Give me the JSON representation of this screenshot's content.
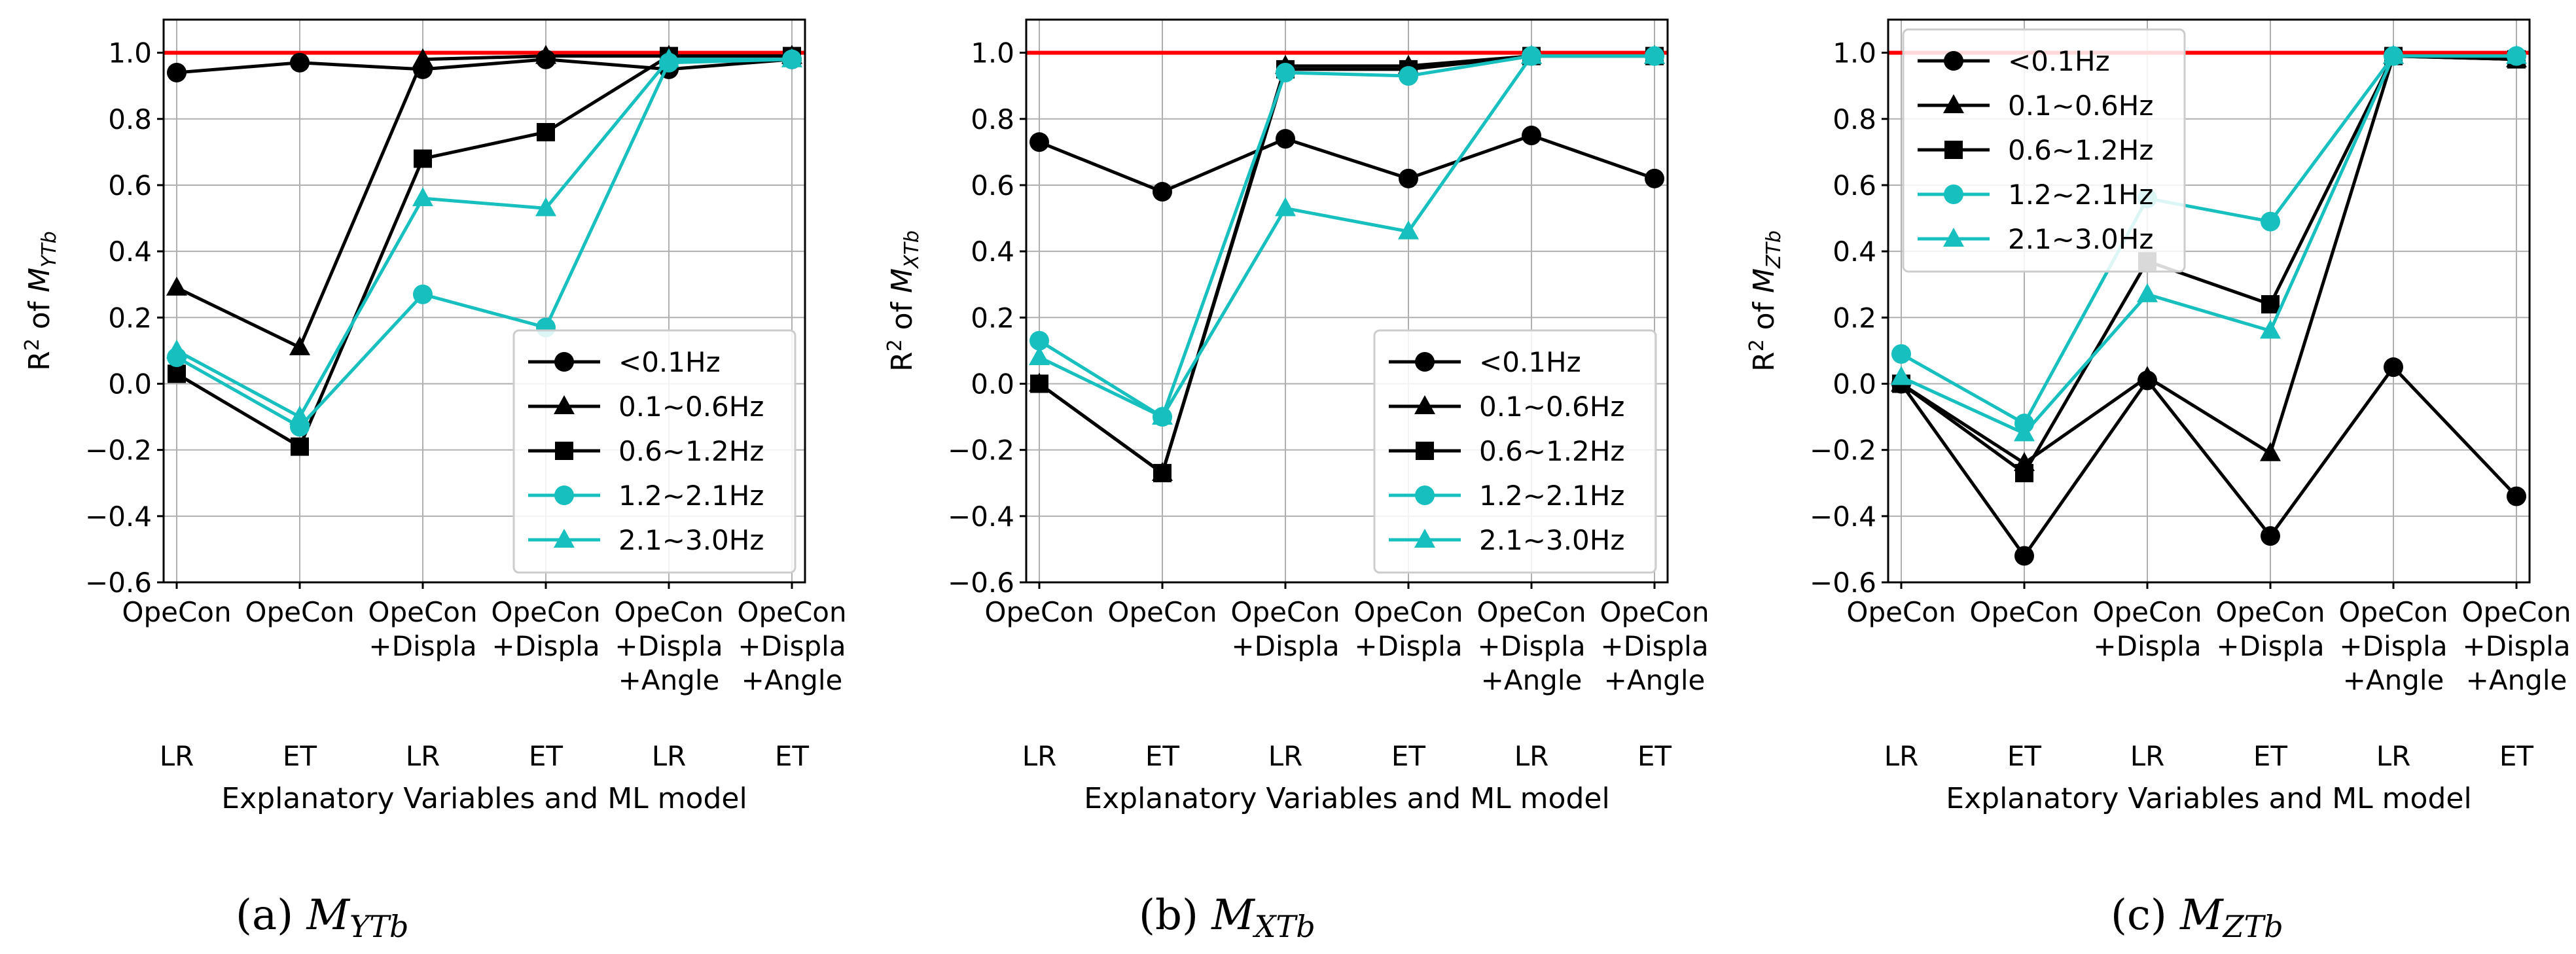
{
  "colors": {
    "black": "#000000",
    "cyan": "#17bfbf",
    "ref": "#ff0000",
    "grid": "#b0b0b0"
  },
  "charts": [
    {
      "panel": "a",
      "caption_letter": "(a)",
      "caption_symbol": "M",
      "caption_sub": "YTb",
      "ylabel_prefix": "R",
      "ylabel_sup": "2",
      "ylabel_of": " of ",
      "ylabel_sym": "M",
      "ylabel_sub": "YTb",
      "xlabel": "Explanatory Variables and ML model",
      "legend_position": "lower-right"
    },
    {
      "panel": "b",
      "caption_letter": "(b)",
      "caption_symbol": "M",
      "caption_sub": "XTb",
      "ylabel_prefix": "R",
      "ylabel_sup": "2",
      "ylabel_of": " of ",
      "ylabel_sym": "M",
      "ylabel_sub": "XTb",
      "xlabel": "Explanatory Variables and ML model",
      "legend_position": "lower-right"
    },
    {
      "panel": "c",
      "caption_letter": "(c)",
      "caption_symbol": "M",
      "caption_sub": "ZTb",
      "ylabel_prefix": "R",
      "ylabel_sup": "2",
      "ylabel_of": " of ",
      "ylabel_sym": "M",
      "ylabel_sub": "ZTb",
      "xlabel": "Explanatory Variables and ML model",
      "legend_position": "upper-left"
    }
  ],
  "chart_data": [
    {
      "type": "line",
      "title": "(a) MYTb",
      "xlabel": "Explanatory Variables and ML model",
      "ylabel": "R2 of MYTb",
      "ylim": [
        -0.6,
        1.1
      ],
      "yticks": [
        "1.0",
        "0.8",
        "0.6",
        "0.4",
        "0.2",
        "0.0",
        "−0.2",
        "−0.4",
        "−0.6"
      ],
      "ytick_values": [
        1.0,
        0.8,
        0.6,
        0.4,
        0.2,
        0.0,
        -0.2,
        -0.4,
        -0.6
      ],
      "categories": [
        {
          "vars": [
            "OpeCon"
          ],
          "model": "LR"
        },
        {
          "vars": [
            "OpeCon"
          ],
          "model": "ET"
        },
        {
          "vars": [
            "OpeCon",
            "+Displa"
          ],
          "model": "LR"
        },
        {
          "vars": [
            "OpeCon",
            "+Displa"
          ],
          "model": "ET"
        },
        {
          "vars": [
            "OpeCon",
            "+Displa",
            "+Angle"
          ],
          "model": "LR"
        },
        {
          "vars": [
            "OpeCon",
            "+Displa",
            "+Angle"
          ],
          "model": "ET"
        }
      ],
      "reference_line": 1.0,
      "grid": true,
      "series": [
        {
          "name": "<0.1Hz",
          "color": "black",
          "marker": "circle",
          "values": [
            0.94,
            0.97,
            0.95,
            0.98,
            0.95,
            0.98
          ]
        },
        {
          "name": "0.1~0.6Hz",
          "color": "black",
          "marker": "triangle",
          "values": [
            0.29,
            0.11,
            0.98,
            0.99,
            0.99,
            0.99
          ]
        },
        {
          "name": "0.6~1.2Hz",
          "color": "black",
          "marker": "square",
          "values": [
            0.03,
            -0.19,
            0.68,
            0.76,
            0.99,
            0.99
          ]
        },
        {
          "name": "1.2~2.1Hz",
          "color": "cyan",
          "marker": "circle",
          "values": [
            0.08,
            -0.13,
            0.27,
            0.17,
            0.97,
            0.98
          ]
        },
        {
          "name": "2.1~3.0Hz",
          "color": "cyan",
          "marker": "triangle",
          "values": [
            0.1,
            -0.1,
            0.56,
            0.53,
            0.98,
            0.98
          ]
        }
      ]
    },
    {
      "type": "line",
      "title": "(b) MXTb",
      "xlabel": "Explanatory Variables and ML model",
      "ylabel": "R2 of MXTb",
      "ylim": [
        -0.6,
        1.1
      ],
      "yticks": [
        "1.0",
        "0.8",
        "0.6",
        "0.4",
        "0.2",
        "0.0",
        "−0.2",
        "−0.4",
        "−0.6"
      ],
      "ytick_values": [
        1.0,
        0.8,
        0.6,
        0.4,
        0.2,
        0.0,
        -0.2,
        -0.4,
        -0.6
      ],
      "categories": [
        {
          "vars": [
            "OpeCon"
          ],
          "model": "LR"
        },
        {
          "vars": [
            "OpeCon"
          ],
          "model": "ET"
        },
        {
          "vars": [
            "OpeCon",
            "+Displa"
          ],
          "model": "LR"
        },
        {
          "vars": [
            "OpeCon",
            "+Displa"
          ],
          "model": "ET"
        },
        {
          "vars": [
            "OpeCon",
            "+Displa",
            "+Angle"
          ],
          "model": "LR"
        },
        {
          "vars": [
            "OpeCon",
            "+Displa",
            "+Angle"
          ],
          "model": "ET"
        }
      ],
      "reference_line": 1.0,
      "grid": true,
      "series": [
        {
          "name": "<0.1Hz",
          "color": "black",
          "marker": "circle",
          "values": [
            0.73,
            0.58,
            0.74,
            0.62,
            0.75,
            0.62
          ]
        },
        {
          "name": "0.1~0.6Hz",
          "color": "black",
          "marker": "triangle",
          "values": [
            0.0,
            -0.27,
            0.96,
            0.96,
            0.99,
            0.99
          ]
        },
        {
          "name": "0.6~1.2Hz",
          "color": "black",
          "marker": "square",
          "values": [
            0.0,
            -0.27,
            0.95,
            0.95,
            0.99,
            0.99
          ]
        },
        {
          "name": "1.2~2.1Hz",
          "color": "cyan",
          "marker": "circle",
          "values": [
            0.13,
            -0.1,
            0.94,
            0.93,
            0.99,
            0.99
          ]
        },
        {
          "name": "2.1~3.0Hz",
          "color": "cyan",
          "marker": "triangle",
          "values": [
            0.08,
            -0.1,
            0.53,
            0.46,
            0.99,
            0.99
          ]
        }
      ]
    },
    {
      "type": "line",
      "title": "(c) MZTb",
      "xlabel": "Explanatory Variables and ML model",
      "ylabel": "R2 of MZTb",
      "ylim": [
        -0.6,
        1.1
      ],
      "yticks": [
        "1.0",
        "0.8",
        "0.6",
        "0.4",
        "0.2",
        "0.0",
        "−0.2",
        "−0.4",
        "−0.6"
      ],
      "ytick_values": [
        1.0,
        0.8,
        0.6,
        0.4,
        0.2,
        0.0,
        -0.2,
        -0.4,
        -0.6
      ],
      "categories": [
        {
          "vars": [
            "OpeCon"
          ],
          "model": "LR"
        },
        {
          "vars": [
            "OpeCon"
          ],
          "model": "ET"
        },
        {
          "vars": [
            "OpeCon",
            "+Displa"
          ],
          "model": "LR"
        },
        {
          "vars": [
            "OpeCon",
            "+Displa"
          ],
          "model": "ET"
        },
        {
          "vars": [
            "OpeCon",
            "+Displa",
            "+Angle"
          ],
          "model": "LR"
        },
        {
          "vars": [
            "OpeCon",
            "+Displa",
            "+Angle"
          ],
          "model": "ET"
        }
      ],
      "reference_line": 1.0,
      "grid": true,
      "series": [
        {
          "name": "<0.1Hz",
          "color": "black",
          "marker": "circle",
          "values": [
            0.0,
            -0.52,
            0.01,
            -0.46,
            0.05,
            -0.34
          ]
        },
        {
          "name": "0.1~0.6Hz",
          "color": "black",
          "marker": "triangle",
          "values": [
            0.0,
            -0.24,
            0.02,
            -0.21,
            0.99,
            0.98
          ]
        },
        {
          "name": "0.6~1.2Hz",
          "color": "black",
          "marker": "square",
          "values": [
            0.0,
            -0.27,
            0.37,
            0.24,
            0.99,
            0.98
          ]
        },
        {
          "name": "1.2~2.1Hz",
          "color": "cyan",
          "marker": "circle",
          "values": [
            0.09,
            -0.12,
            0.56,
            0.49,
            0.99,
            0.99
          ]
        },
        {
          "name": "2.1~3.0Hz",
          "color": "cyan",
          "marker": "triangle",
          "values": [
            0.02,
            -0.15,
            0.27,
            0.16,
            0.99,
            0.99
          ]
        }
      ]
    }
  ]
}
